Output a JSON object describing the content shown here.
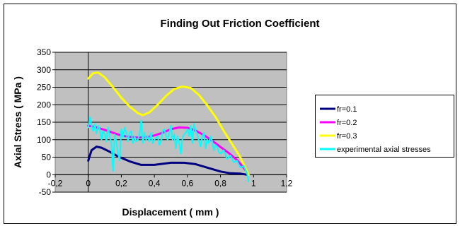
{
  "chart_data": {
    "type": "line",
    "title": "Finding Out Friction Coefficient",
    "xlabel": "Displacement ( mm )",
    "ylabel": "Axial Stress ( MPa )",
    "xlim": [
      -0.2,
      1.2
    ],
    "ylim": [
      -50,
      350
    ],
    "xticks": [
      -0.2,
      0,
      0.2,
      0.4,
      0.6,
      0.8,
      1,
      1.2
    ],
    "yticks": [
      -50,
      0,
      50,
      100,
      150,
      200,
      250,
      300,
      350
    ],
    "xtick_labels": [
      "-0,2",
      "0",
      "0,2",
      "0,4",
      "0,6",
      "0,8",
      "1",
      "1,2"
    ],
    "ytick_labels": [
      "-50",
      "0",
      "50",
      "100",
      "150",
      "200",
      "250",
      "300",
      "350"
    ],
    "grid": "horizontal",
    "legend_position": "right",
    "series": [
      {
        "name": "fr=0.1",
        "color": "#000080",
        "x": [
          0,
          0.02,
          0.05,
          0.08,
          0.12,
          0.18,
          0.25,
          0.32,
          0.4,
          0.5,
          0.58,
          0.65,
          0.72,
          0.8,
          0.86,
          0.92,
          0.96
        ],
        "y": [
          40,
          70,
          80,
          77,
          68,
          52,
          38,
          28,
          28,
          34,
          34,
          30,
          20,
          9,
          4,
          3,
          0
        ]
      },
      {
        "name": "fr=0.2",
        "color": "#ff00ff",
        "x": [
          0,
          0.05,
          0.1,
          0.15,
          0.2,
          0.25,
          0.3,
          0.35,
          0.4,
          0.45,
          0.5,
          0.55,
          0.6,
          0.65,
          0.7,
          0.75,
          0.8,
          0.85,
          0.9,
          0.95
        ],
        "y": [
          140,
          135,
          128,
          120,
          112,
          108,
          106,
          107,
          112,
          120,
          130,
          135,
          134,
          126,
          113,
          97,
          79,
          62,
          42,
          14
        ]
      },
      {
        "name": "fr=0.3",
        "color": "#ffff00",
        "x": [
          0,
          0.03,
          0.06,
          0.1,
          0.15,
          0.2,
          0.25,
          0.3,
          0.33,
          0.37,
          0.42,
          0.47,
          0.52,
          0.57,
          0.62,
          0.67,
          0.72,
          0.77,
          0.82,
          0.87,
          0.92,
          0.97
        ],
        "y": [
          275,
          290,
          292,
          278,
          250,
          220,
          195,
          176,
          170,
          178,
          200,
          225,
          245,
          252,
          248,
          228,
          198,
          165,
          125,
          88,
          50,
          0
        ]
      },
      {
        "name": "experimental axial stresses",
        "color": "#00ffff",
        "x": [
          0,
          0.01,
          0.02,
          0.03,
          0.04,
          0.05,
          0.06,
          0.07,
          0.08,
          0.09,
          0.1,
          0.11,
          0.12,
          0.13,
          0.14,
          0.15,
          0.16,
          0.17,
          0.18,
          0.19,
          0.2,
          0.21,
          0.22,
          0.23,
          0.24,
          0.25,
          0.26,
          0.27,
          0.28,
          0.29,
          0.3,
          0.31,
          0.32,
          0.33,
          0.34,
          0.35,
          0.36,
          0.37,
          0.38,
          0.39,
          0.4,
          0.41,
          0.42,
          0.43,
          0.44,
          0.45,
          0.46,
          0.47,
          0.48,
          0.49,
          0.5,
          0.51,
          0.52,
          0.53,
          0.54,
          0.55,
          0.56,
          0.57,
          0.58,
          0.59,
          0.6,
          0.61,
          0.62,
          0.63,
          0.64,
          0.65,
          0.66,
          0.67,
          0.68,
          0.69,
          0.7,
          0.71,
          0.72,
          0.73,
          0.74,
          0.75,
          0.76,
          0.77,
          0.78,
          0.79,
          0.8,
          0.82,
          0.84,
          0.86,
          0.88,
          0.9,
          0.92,
          0.94,
          0.96,
          0.97
        ],
        "y": [
          135,
          165,
          140,
          125,
          145,
          118,
          140,
          130,
          100,
          125,
          115,
          95,
          135,
          110,
          90,
          10,
          115,
          95,
          60,
          40,
          130,
          105,
          135,
          120,
          95,
          120,
          125,
          90,
          110,
          95,
          100,
          115,
          155,
          90,
          120,
          100,
          110,
          95,
          120,
          90,
          100,
          105,
          110,
          85,
          95,
          125,
          130,
          110,
          100,
          120,
          140,
          100,
          115,
          75,
          110,
          90,
          60,
          105,
          115,
          120,
          130,
          110,
          140,
          90,
          145,
          125,
          115,
          95,
          80,
          110,
          120,
          75,
          100,
          90,
          110,
          95,
          70,
          85,
          80,
          65,
          60,
          70,
          45,
          55,
          35,
          40,
          20,
          25,
          5,
          -20
        ]
      }
    ]
  }
}
